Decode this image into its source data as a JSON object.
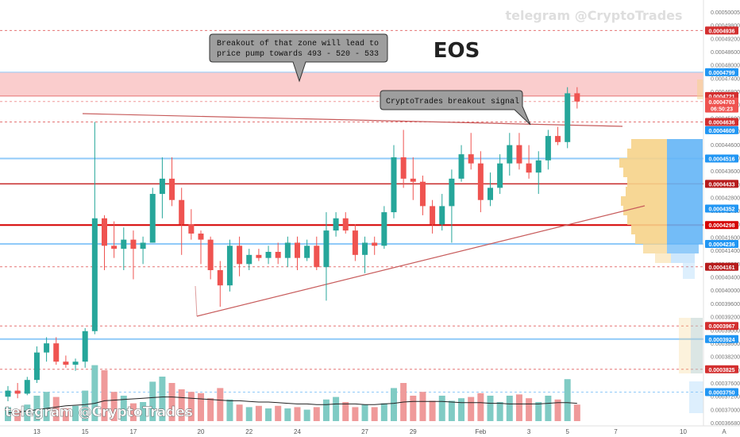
{
  "chart_data": {
    "type": "candlestick",
    "symbol": "EOS",
    "watermark": "telegram @CryptoTrades",
    "annotations": [
      {
        "text_lines": [
          "Breakout of that zone will lead to",
          "price pump towards 493 - 520 - 533"
        ]
      },
      {
        "text_lines": [
          "CryptoTrades breakout signal"
        ]
      }
    ],
    "y_axis": {
      "range": [
        0.0003655,
        0.0005015
      ],
      "ticks": [
        "0.00050005",
        "0.00049800",
        "0.00049200",
        "0.00048600",
        "0.00048000",
        "0.00047400",
        "0.00046800",
        "0.00046200",
        "0.00045600",
        "0.00045000",
        "0.00044600",
        "0.00044000",
        "0.00043600",
        "0.00043200",
        "0.00042800",
        "0.00042400",
        "0.00042000",
        "0.00041600",
        "0.00041400",
        "0.00040800",
        "0.00040400",
        "0.00040000",
        "0.00039600",
        "0.00039200",
        "0.00039000",
        "0.00038600",
        "0.00038200",
        "0.00038000",
        "0.00037600",
        "0.00037200",
        "0.00037000",
        "0.00036680"
      ]
    },
    "price_markers": [
      {
        "value": 0.0004936,
        "label": "0.0004936",
        "color": "#d32f2f"
      },
      {
        "value": 0.0004799,
        "label": "0.0004799",
        "color": "#2196f3"
      },
      {
        "value": 0.0004721,
        "label": "0.0004721",
        "color": "#d32f2f"
      },
      {
        "value": 0.0004703,
        "label": "0.0004703",
        "color": "#ef5350"
      },
      {
        "value": 0.000468,
        "label": "06:50:23",
        "color": "#ef5350"
      },
      {
        "value": 0.0004636,
        "label": "0.0004636",
        "color": "#d32f2f"
      },
      {
        "value": 0.0004609,
        "label": "0.0004609",
        "color": "#2196f3"
      },
      {
        "value": 0.0004516,
        "label": "0.0004516",
        "color": "#2196f3"
      },
      {
        "value": 0.0004433,
        "label": "0.0004433",
        "color": "#b71c1c"
      },
      {
        "value": 0.0004352,
        "label": "0.0004352",
        "color": "#2196f3"
      },
      {
        "value": 0.0004298,
        "label": "0.0004298",
        "color": "#d50000"
      },
      {
        "value": 0.0004236,
        "label": "0.0004236",
        "color": "#2196f3"
      },
      {
        "value": 0.0004161,
        "label": "0.0004161",
        "color": "#b71c1c"
      },
      {
        "value": 0.0003967,
        "label": "0.0003967",
        "color": "#d32f2f"
      },
      {
        "value": 0.0003924,
        "label": "0.0003924",
        "color": "#2196f3"
      },
      {
        "value": 0.0003825,
        "label": "0.0003825",
        "color": "#d32f2f"
      },
      {
        "value": 0.000375,
        "label": "0.0003750",
        "color": "#2196f3"
      }
    ],
    "horizontal_levels": [
      {
        "value": 0.0004936,
        "style": "dashed",
        "color": "#e57373"
      },
      {
        "value": 0.0004799,
        "style": "solid",
        "color": "#90caf9"
      },
      {
        "value": 0.0004721,
        "style": "solid",
        "color": "#e57373"
      },
      {
        "value": 0.0004703,
        "style": "dashed",
        "color": "#ef9a9a"
      },
      {
        "value": 0.0004636,
        "style": "dashed",
        "color": "#e57373"
      },
      {
        "value": 0.0004516,
        "style": "solid",
        "color": "#90caf9",
        "width": 2
      },
      {
        "value": 0.0004433,
        "style": "solid",
        "color": "#c62828",
        "width": 1.5
      },
      {
        "value": 0.0004298,
        "style": "solid",
        "color": "#d50000",
        "width": 2
      },
      {
        "value": 0.0004236,
        "style": "solid",
        "color": "#90caf9",
        "width": 2
      },
      {
        "value": 0.0004161,
        "style": "dashed",
        "color": "#e57373"
      },
      {
        "value": 0.0003967,
        "style": "dashed",
        "color": "#e57373"
      },
      {
        "value": 0.0003924,
        "style": "solid",
        "color": "#90caf9",
        "width": 2
      },
      {
        "value": 0.0003825,
        "style": "dashed",
        "color": "#e57373"
      },
      {
        "value": 0.000375,
        "style": "dashed",
        "color": "#90caf9"
      }
    ],
    "resistance_zone": {
      "from": 0.0004721,
      "to": 0.0004799
    },
    "x_axis": {
      "labels": [
        "13",
        "15",
        "17",
        "20",
        "22",
        "24",
        "27",
        "29",
        "Feb",
        "3",
        "5",
        "7",
        "10"
      ],
      "candle_count": 60
    },
    "candles": [
      {
        "o": 0.0003735,
        "h": 0.000377,
        "l": 0.000372,
        "c": 0.0003755
      },
      {
        "o": 0.0003755,
        "h": 0.000378,
        "l": 0.000373,
        "c": 0.0003745
      },
      {
        "o": 0.0003745,
        "h": 0.00038,
        "l": 0.000374,
        "c": 0.000379
      },
      {
        "o": 0.000379,
        "h": 0.00039,
        "l": 0.000378,
        "c": 0.000388
      },
      {
        "o": 0.000388,
        "h": 0.000393,
        "l": 0.000385,
        "c": 0.000391
      },
      {
        "o": 0.000391,
        "h": 0.000393,
        "l": 0.000384,
        "c": 0.000385
      },
      {
        "o": 0.000385,
        "h": 0.000387,
        "l": 0.000383,
        "c": 0.000384
      },
      {
        "o": 0.000384,
        "h": 0.000386,
        "l": 0.000382,
        "c": 0.000385
      },
      {
        "o": 0.000385,
        "h": 0.000396,
        "l": 0.000383,
        "c": 0.000395
      },
      {
        "o": 0.000395,
        "h": 0.0004636,
        "l": 0.000394,
        "c": 0.000432
      },
      {
        "o": 0.000432,
        "h": 0.000433,
        "l": 0.000415,
        "c": 0.000423
      },
      {
        "o": 0.000423,
        "h": 0.000431,
        "l": 0.000419,
        "c": 0.000422
      },
      {
        "o": 0.000422,
        "h": 0.000429,
        "l": 0.000415,
        "c": 0.000425
      },
      {
        "o": 0.000425,
        "h": 0.000428,
        "l": 0.000412,
        "c": 0.000422
      },
      {
        "o": 0.000422,
        "h": 0.000426,
        "l": 0.000417,
        "c": 0.000424
      },
      {
        "o": 0.000424,
        "h": 0.000442,
        "l": 0.000424,
        "c": 0.00044
      },
      {
        "o": 0.00044,
        "h": 0.000452,
        "l": 0.000432,
        "c": 0.000445
      },
      {
        "o": 0.000445,
        "h": 0.000452,
        "l": 0.000436,
        "c": 0.000438
      },
      {
        "o": 0.000438,
        "h": 0.000442,
        "l": 0.00042,
        "c": 0.00043
      },
      {
        "o": 0.00043,
        "h": 0.000435,
        "l": 0.000425,
        "c": 0.000427
      },
      {
        "o": 0.000427,
        "h": 0.000428,
        "l": 0.000417,
        "c": 0.000425
      },
      {
        "o": 0.000425,
        "h": 0.000426,
        "l": 0.000412,
        "c": 0.000415
      },
      {
        "o": 0.000415,
        "h": 0.000418,
        "l": 0.000403,
        "c": 0.00041
      },
      {
        "o": 0.00041,
        "h": 0.000425,
        "l": 0.000408,
        "c": 0.000423
      },
      {
        "o": 0.000423,
        "h": 0.000426,
        "l": 0.000413,
        "c": 0.000417
      },
      {
        "o": 0.000417,
        "h": 0.000422,
        "l": 0.000415,
        "c": 0.00042
      },
      {
        "o": 0.00042,
        "h": 0.000422,
        "l": 0.000418,
        "c": 0.000419
      },
      {
        "o": 0.000419,
        "h": 0.000423,
        "l": 0.000417,
        "c": 0.000421
      },
      {
        "o": 0.000421,
        "h": 0.000424,
        "l": 0.000417,
        "c": 0.000419
      },
      {
        "o": 0.000419,
        "h": 0.000426,
        "l": 0.000416,
        "c": 0.000424
      },
      {
        "o": 0.000424,
        "h": 0.000426,
        "l": 0.000415,
        "c": 0.000419
      },
      {
        "o": 0.000419,
        "h": 0.000425,
        "l": 0.000418,
        "c": 0.000423
      },
      {
        "o": 0.000423,
        "h": 0.000426,
        "l": 0.000415,
        "c": 0.000416
      },
      {
        "o": 0.000416,
        "h": 0.000434,
        "l": 0.000405,
        "c": 0.000428
      },
      {
        "o": 0.000428,
        "h": 0.000434,
        "l": 0.000426,
        "c": 0.000432
      },
      {
        "o": 0.000432,
        "h": 0.000434,
        "l": 0.000427,
        "c": 0.000428
      },
      {
        "o": 0.000428,
        "h": 0.00043,
        "l": 0.000418,
        "c": 0.00042
      },
      {
        "o": 0.00042,
        "h": 0.000426,
        "l": 0.000414,
        "c": 0.000424
      },
      {
        "o": 0.000424,
        "h": 0.000426,
        "l": 0.00042,
        "c": 0.000423
      },
      {
        "o": 0.000423,
        "h": 0.000436,
        "l": 0.000422,
        "c": 0.000434
      },
      {
        "o": 0.000434,
        "h": 0.000456,
        "l": 0.000432,
        "c": 0.000452
      },
      {
        "o": 0.000452,
        "h": 0.000461,
        "l": 0.000442,
        "c": 0.000445
      },
      {
        "o": 0.000445,
        "h": 0.000452,
        "l": 0.000438,
        "c": 0.000444
      },
      {
        "o": 0.000444,
        "h": 0.000446,
        "l": 0.000433,
        "c": 0.000436
      },
      {
        "o": 0.000436,
        "h": 0.000438,
        "l": 0.000427,
        "c": 0.00043
      },
      {
        "o": 0.00043,
        "h": 0.00044,
        "l": 0.000428,
        "c": 0.000436
      },
      {
        "o": 0.000436,
        "h": 0.000448,
        "l": 0.000424,
        "c": 0.000445
      },
      {
        "o": 0.000445,
        "h": 0.000456,
        "l": 0.000444,
        "c": 0.000453
      },
      {
        "o": 0.000453,
        "h": 0.00046,
        "l": 0.000448,
        "c": 0.00045
      },
      {
        "o": 0.00045,
        "h": 0.000454,
        "l": 0.000434,
        "c": 0.000438
      },
      {
        "o": 0.000438,
        "h": 0.000447,
        "l": 0.000436,
        "c": 0.000442
      },
      {
        "o": 0.000442,
        "h": 0.000453,
        "l": 0.00044,
        "c": 0.00045
      },
      {
        "o": 0.00045,
        "h": 0.00046,
        "l": 0.000446,
        "c": 0.000456
      },
      {
        "o": 0.000456,
        "h": 0.00046,
        "l": 0.000448,
        "c": 0.00045
      },
      {
        "o": 0.00045,
        "h": 0.000456,
        "l": 0.000445,
        "c": 0.000447
      },
      {
        "o": 0.000447,
        "h": 0.000454,
        "l": 0.00044,
        "c": 0.000451
      },
      {
        "o": 0.000451,
        "h": 0.000461,
        "l": 0.000448,
        "c": 0.000459
      },
      {
        "o": 0.000459,
        "h": 0.000462,
        "l": 0.000456,
        "c": 0.000457
      },
      {
        "o": 0.000457,
        "h": 0.000475,
        "l": 0.000455,
        "c": 0.000473
      },
      {
        "o": 0.000473,
        "h": 0.000475,
        "l": 0.000468,
        "c": 0.0004703
      }
    ],
    "moving_average": [
      13,
      14,
      16,
      18,
      20,
      22,
      24,
      25,
      26,
      28,
      32,
      33,
      34,
      35,
      36,
      37,
      38,
      38,
      37,
      36,
      35,
      34,
      33,
      32,
      32,
      31,
      30,
      30,
      29,
      28,
      27,
      27,
      26,
      26,
      27,
      27,
      27,
      26,
      26,
      27,
      28,
      30,
      31,
      31,
      31,
      31,
      30,
      29,
      29,
      29,
      28,
      28,
      27,
      27,
      27,
      27,
      28,
      29,
      29,
      28
    ],
    "volume": [
      22,
      18,
      26,
      40,
      46,
      38,
      20,
      24,
      48,
      88,
      80,
      46,
      40,
      28,
      30,
      62,
      70,
      60,
      50,
      46,
      44,
      36,
      52,
      34,
      26,
      22,
      24,
      20,
      24,
      20,
      22,
      18,
      22,
      34,
      38,
      30,
      22,
      26,
      22,
      28,
      52,
      60,
      40,
      46,
      32,
      40,
      32,
      36,
      38,
      44,
      40,
      30,
      40,
      42,
      36,
      30,
      40,
      34,
      66,
      26
    ],
    "volume_range": [
      0,
      100
    ]
  }
}
